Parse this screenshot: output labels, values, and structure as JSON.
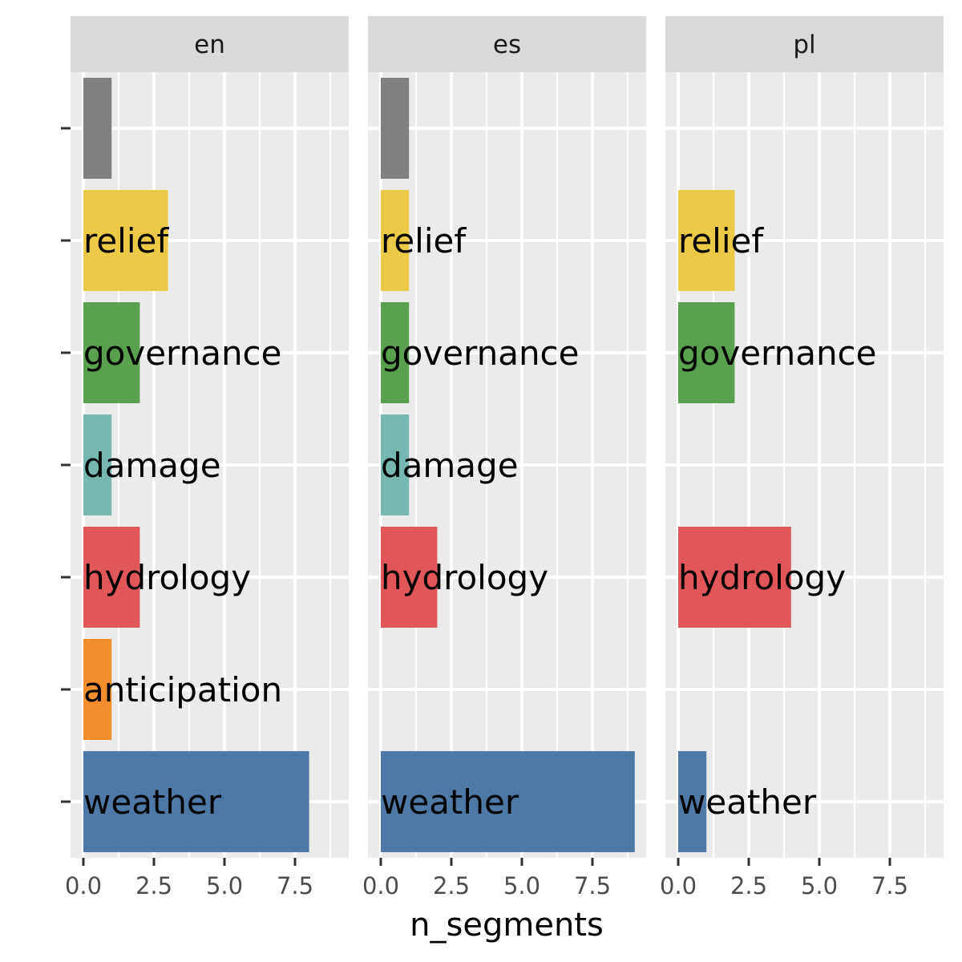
{
  "chart_data": {
    "type": "bar",
    "orientation": "horizontal",
    "facet_labels": [
      "en",
      "es",
      "pl"
    ],
    "categories": [
      "weather",
      "anticipation",
      "hydrology",
      "damage",
      "governance",
      "relief",
      ""
    ],
    "colors": {
      "weather": "#4e79a7",
      "anticipation": "#f28e2b",
      "hydrology": "#e15759",
      "damage": "#76b7b2",
      "governance": "#59a14f",
      "relief": "#edc948",
      "": "#808080"
    },
    "panels": [
      {
        "facet": "en",
        "values": {
          "weather": 8,
          "anticipation": 1,
          "hydrology": 2,
          "damage": 1,
          "governance": 2,
          "relief": 3,
          "": 1
        }
      },
      {
        "facet": "es",
        "values": {
          "weather": 9,
          "hydrology": 2,
          "damage": 1,
          "governance": 1,
          "relief": 1,
          "": 1
        }
      },
      {
        "facet": "pl",
        "values": {
          "weather": 1,
          "hydrology": 4,
          "governance": 2,
          "relief": 2
        }
      }
    ],
    "xlabel": "n_segments",
    "ylabel": "",
    "xlim": [
      0,
      9
    ],
    "xticks": [
      0,
      2.5,
      5,
      7.5
    ],
    "xtick_labels": [
      "0.0",
      "2.5",
      "5.0",
      "7.5"
    ],
    "grid": true
  }
}
